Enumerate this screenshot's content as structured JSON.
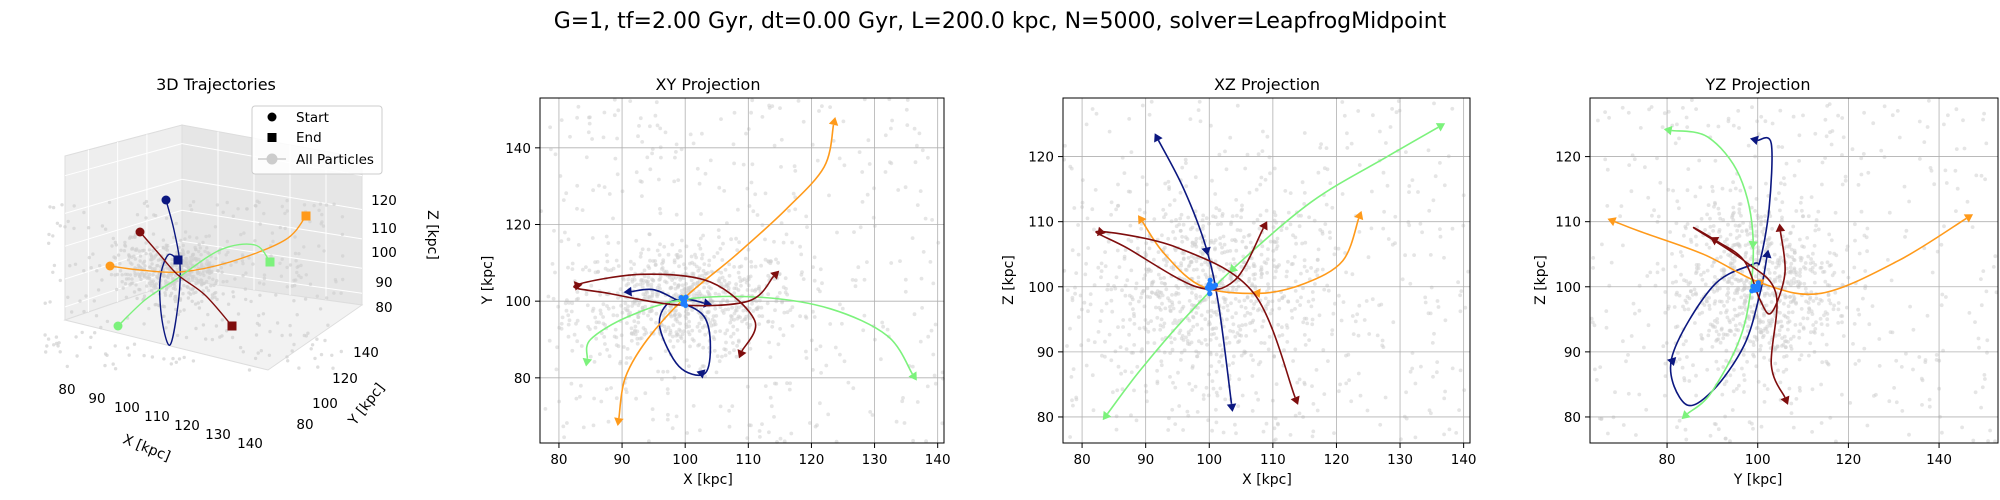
{
  "suptitle": "G=1, tf=2.00 Gyr, dt=0.00 Gyr, L=200.0 kpc, N=5000, solver=LeapfrogMidpoint",
  "colors": {
    "navy": "#0b1780",
    "orange": "#ff9a1a",
    "green": "#7cf27c",
    "maroon": "#7f0d0d",
    "blue": "#1f7fff",
    "background_particles": "#d0d0d0"
  },
  "legend": {
    "start": "Start",
    "end": "End",
    "particles": "All Particles"
  },
  "chart_data": [
    {
      "type": "line",
      "title": "3D Trajectories",
      "xlabel": "X [kpc]",
      "ylabel": "Y [kpc]",
      "zlabel": "Z [kpc]",
      "x_ticks": [
        "80",
        "90",
        "100",
        "110",
        "120",
        "130",
        "140"
      ],
      "y_ticks": [
        "80",
        "100",
        "120",
        "140"
      ],
      "z_ticks": [
        "80",
        "90",
        "100",
        "110",
        "120"
      ],
      "legend_placement": "top-right",
      "grid": true
    },
    {
      "type": "line",
      "title": "XY Projection",
      "xlabel": "X [kpc]",
      "ylabel": "Y [kpc]",
      "xlim": [
        77,
        141
      ],
      "ylim": [
        63,
        153
      ],
      "x_ticks": [
        80,
        90,
        100,
        110,
        120,
        130,
        140
      ],
      "y_ticks": [
        80,
        100,
        120,
        140
      ],
      "grid": true,
      "series": [
        {
          "color": "navy",
          "points": [
            [
              91.5,
              102.5
            ],
            [
              95,
              103
            ],
            [
              99,
              100
            ],
            [
              103,
              96
            ],
            [
              104,
              88
            ],
            [
              103,
              81
            ],
            [
              99,
              83
            ],
            [
              96,
              93
            ],
            [
              97,
              99
            ],
            [
              100,
              100.5
            ],
            [
              103,
              99.5
            ]
          ]
        },
        {
          "color": "orange",
          "points": [
            [
              123.5,
              146
            ],
            [
              122,
              135
            ],
            [
              116,
              124
            ],
            [
              108,
              112
            ],
            [
              100,
              101
            ],
            [
              94,
              90
            ],
            [
              90.5,
              80
            ],
            [
              89.5,
              69.5
            ]
          ]
        },
        {
          "color": "green",
          "points": [
            [
              136,
              81
            ],
            [
              132,
              91
            ],
            [
              123,
              98
            ],
            [
              112,
              101
            ],
            [
              100,
              100.5
            ],
            [
              91,
              96
            ],
            [
              85,
              90
            ],
            [
              84.5,
              85
            ]
          ]
        },
        {
          "color": "maroon",
          "points": [
            [
              114,
              106.5
            ],
            [
              110,
              100
            ],
            [
              99,
              99
            ],
            [
              88,
              102
            ],
            [
              82.5,
              104
            ],
            [
              93,
              107
            ],
            [
              104,
              105
            ],
            [
              111,
              95
            ],
            [
              109,
              87
            ]
          ]
        }
      ]
    },
    {
      "type": "line",
      "title": "XZ Projection",
      "xlabel": "X [kpc]",
      "ylabel": "Z [kpc]",
      "xlim": [
        77,
        141
      ],
      "ylim": [
        76,
        129
      ],
      "x_ticks": [
        80,
        90,
        100,
        110,
        120,
        130,
        140
      ],
      "y_ticks": [
        80,
        90,
        100,
        110,
        120
      ],
      "grid": true,
      "series": [
        {
          "color": "navy",
          "points": [
            [
              92,
              122.5
            ],
            [
              96,
              115
            ],
            [
              99.5,
              106
            ],
            [
              101.5,
              97
            ],
            [
              103.5,
              82
            ]
          ]
        },
        {
          "color": "orange",
          "points": [
            [
              123.5,
              110.5
            ],
            [
              121,
              104
            ],
            [
              115,
              100.5
            ],
            [
              108,
              99
            ],
            [
              99,
              100
            ],
            [
              93,
              105
            ],
            [
              89.5,
              110
            ]
          ]
        },
        {
          "color": "green",
          "points": [
            [
              136,
              124.5
            ],
            [
              128,
              120
            ],
            [
              116,
              113
            ],
            [
              104,
              103
            ],
            [
              96,
              95
            ],
            [
              89,
              87
            ],
            [
              84,
              80.5
            ]
          ]
        },
        {
          "color": "maroon",
          "points": [
            [
              108.5,
              109
            ],
            [
              104,
              101
            ],
            [
              98,
              100
            ],
            [
              87,
              106
            ],
            [
              82.5,
              108.5
            ],
            [
              95,
              106
            ],
            [
              107,
              99
            ],
            [
              113.5,
              83
            ]
          ]
        }
      ]
    },
    {
      "type": "line",
      "title": "YZ Projection",
      "xlabel": "Y [kpc]",
      "ylabel": "Z [kpc]",
      "xlim": [
        63,
        153
      ],
      "ylim": [
        76,
        129
      ],
      "x_ticks": [
        80,
        100,
        120,
        140
      ],
      "y_ticks": [
        80,
        90,
        100,
        110,
        120
      ],
      "grid": true,
      "series": [
        {
          "color": "navy",
          "points": [
            [
              100,
              122.5
            ],
            [
              103,
              122
            ],
            [
              102.5,
              112
            ],
            [
              100.5,
              104
            ],
            [
              99,
              103.5
            ],
            [
              90,
              100
            ],
            [
              81,
              89
            ],
            [
              84,
              82
            ],
            [
              90,
              84
            ],
            [
              97,
              91
            ],
            [
              100.5,
              99
            ],
            [
              102,
              104.5
            ]
          ]
        },
        {
          "color": "orange",
          "points": [
            [
              146,
              110.5
            ],
            [
              131,
              104
            ],
            [
              114,
              99
            ],
            [
              101,
              100.5
            ],
            [
              88,
              105
            ],
            [
              74,
              108.5
            ],
            [
              68.5,
              110
            ]
          ]
        },
        {
          "color": "green",
          "points": [
            [
              81,
              124
            ],
            [
              89,
              123
            ],
            [
              96,
              117
            ],
            [
              99,
              107
            ],
            [
              97,
              94
            ],
            [
              90,
              84
            ],
            [
              84.5,
              80.5
            ]
          ]
        },
        {
          "color": "maroon",
          "points": [
            [
              105,
              108.5
            ],
            [
              106,
              102
            ],
            [
              103,
              96
            ],
            [
              100.5,
              98
            ],
            [
              97,
              104
            ],
            [
              91,
              107
            ],
            [
              86,
              109
            ],
            [
              97,
              104
            ],
            [
              104,
              99
            ],
            [
              103,
              88
            ],
            [
              106,
              83
            ]
          ]
        }
      ]
    }
  ]
}
